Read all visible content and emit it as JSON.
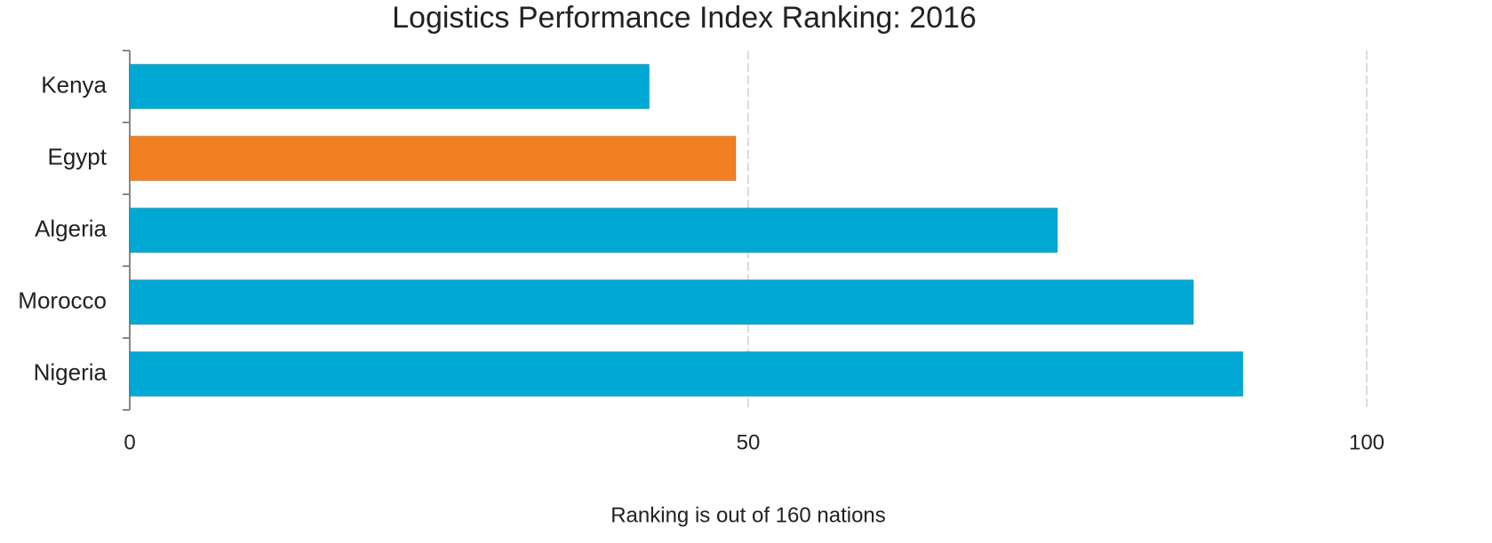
{
  "chart_data": {
    "type": "barh",
    "title": "Logistics Performance  Index Ranking: 2016",
    "categories": [
      "Kenya",
      "Egypt",
      "Algeria",
      "Morocco",
      "Nigeria"
    ],
    "values": [
      42,
      49,
      75,
      86,
      90
    ],
    "colors": [
      "#00a8d4",
      "#f07f22",
      "#00a8d4",
      "#00a8d4",
      "#00a8d4"
    ],
    "xlabel": "Ranking is out of 160 nations",
    "xlim": [
      0,
      100
    ],
    "xticks": [
      0,
      50,
      100
    ],
    "grid": true
  }
}
